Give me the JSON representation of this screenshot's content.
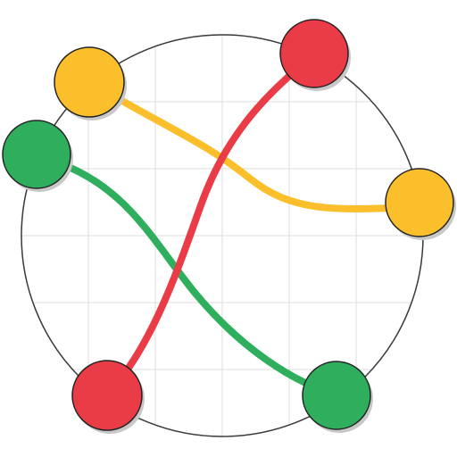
{
  "game": {
    "type": "connect-the-dots",
    "colors": {
      "yellow": "#fbbf2c",
      "red": "#ea3c47",
      "green": "#2fae5e",
      "board_outline": "#3a3a3a",
      "grid": "#dcdcdc",
      "node_outline": "#222222",
      "shadow": "#c8c8c8"
    },
    "pairs": [
      {
        "name": "yellow",
        "color": "yellow"
      },
      {
        "name": "red",
        "color": "red"
      },
      {
        "name": "green",
        "color": "green"
      }
    ],
    "grid": {
      "visible": true,
      "divisions": 6
    }
  }
}
